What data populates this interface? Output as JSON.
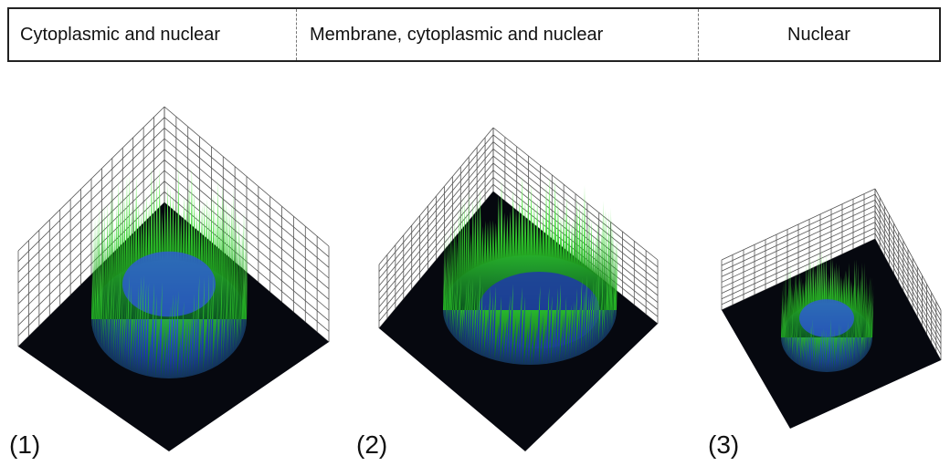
{
  "header": {
    "columns": [
      "Cytoplasmic and nuclear",
      "Membrane, cytoplasmic and nuclear",
      "Nuclear"
    ]
  },
  "panels": [
    {
      "label": "(1)"
    },
    {
      "label": "(2)"
    },
    {
      "label": "(3)"
    }
  ]
}
